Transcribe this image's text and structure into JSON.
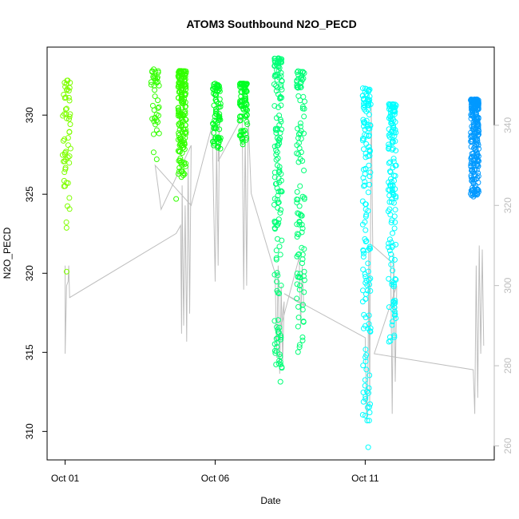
{
  "chart_data": {
    "type": "scatter",
    "title": "ATOM3 Southbound N2O_PECD",
    "xlabel": "Date",
    "ylabel": "N2O_PECD",
    "x_ticks": [
      "Oct 01",
      "Oct 06",
      "Oct 11"
    ],
    "y_ticks": [
      310,
      315,
      320,
      325,
      330
    ],
    "y_range": [
      308.2,
      334.3
    ],
    "y2_ticks": [
      260,
      280,
      300,
      320,
      340
    ],
    "y2_range": [
      256.5,
      359.5
    ],
    "x_range_days": [
      -0.6,
      14.3
    ],
    "colors": {
      "axis": "#000000",
      "altitude_line": "#bebebe",
      "y2_axis": "#bebebe"
    },
    "series": [
      {
        "color": "#7FFF00",
        "values": [
          {
            "x": 0.05,
            "y": 320.1
          },
          {
            "x": 0.05,
            "ymin": 322.8,
            "ymax": 332.2,
            "n": 55
          }
        ]
      },
      {
        "color": "#33FF00",
        "values": [
          {
            "x": 3.0,
            "ymin": 326.9,
            "ymax": 332.9,
            "n": 40
          },
          {
            "x": 3.7,
            "y": 324.7
          },
          {
            "x": 3.9,
            "ymin": 326.0,
            "ymax": 332.8,
            "n": 170
          }
        ]
      },
      {
        "color": "#00FF22",
        "values": [
          {
            "x": 5.05,
            "ymin": 327.8,
            "ymax": 332.0,
            "n": 80
          },
          {
            "x": 5.95,
            "ymin": 328.0,
            "ymax": 332.0,
            "n": 90
          }
        ]
      },
      {
        "color": "#00FF77",
        "values": [
          {
            "x": 7.1,
            "ymin": 313.0,
            "ymax": 333.6,
            "n": 160
          },
          {
            "x": 7.85,
            "ymin": 315.0,
            "ymax": 332.8,
            "n": 110
          }
        ]
      },
      {
        "color": "#00FFFF",
        "values": [
          {
            "x": 10.05,
            "ymin": 310.5,
            "ymax": 331.7,
            "n": 150
          },
          {
            "x": 10.1,
            "y": 309.0
          },
          {
            "x": 10.9,
            "ymin": 315.4,
            "ymax": 330.7,
            "n": 150
          }
        ]
      },
      {
        "color": "#0099FF",
        "values": [
          {
            "x": 13.65,
            "ymin": 324.8,
            "ymax": 331.0,
            "n": 220
          }
        ]
      }
    ],
    "altitude_profile": [
      [
        0.0,
        305
      ],
      [
        0.0,
        283
      ],
      [
        0.05,
        300
      ],
      [
        0.1,
        301
      ],
      [
        0.12,
        305
      ],
      [
        0.15,
        297
      ],
      [
        3.7,
        313
      ],
      [
        3.85,
        315
      ],
      [
        3.88,
        288
      ],
      [
        3.9,
        325
      ],
      [
        3.95,
        290
      ],
      [
        4.0,
        320
      ],
      [
        4.05,
        286
      ],
      [
        4.1,
        330
      ],
      [
        4.15,
        293
      ],
      [
        4.2,
        335
      ],
      [
        3.2,
        319
      ],
      [
        3.0,
        330
      ],
      [
        4.2,
        320
      ],
      [
        4.9,
        340
      ],
      [
        5.0,
        301
      ],
      [
        5.05,
        335
      ],
      [
        5.1,
        305
      ],
      [
        5.15,
        345
      ],
      [
        5.1,
        331
      ],
      [
        5.9,
        342
      ],
      [
        5.95,
        299
      ],
      [
        6.0,
        338
      ],
      [
        6.05,
        300
      ],
      [
        6.1,
        342
      ],
      [
        6.2,
        323
      ],
      [
        7.0,
        303
      ],
      [
        7.05,
        282
      ],
      [
        7.1,
        305
      ],
      [
        7.15,
        278
      ],
      [
        7.2,
        300
      ],
      [
        7.25,
        281
      ],
      [
        7.3,
        296
      ],
      [
        7.2,
        290
      ],
      [
        7.8,
        307
      ],
      [
        7.85,
        290
      ],
      [
        7.9,
        305
      ],
      [
        7.95,
        295
      ],
      [
        7.3,
        298
      ],
      [
        10.0,
        287
      ],
      [
        10.05,
        266
      ],
      [
        10.1,
        283
      ],
      [
        10.12,
        310
      ],
      [
        10.15,
        270
      ],
      [
        10.2,
        345
      ],
      [
        10.25,
        310
      ],
      [
        10.85,
        306
      ],
      [
        10.9,
        268
      ],
      [
        10.95,
        308
      ],
      [
        11.0,
        276
      ],
      [
        11.05,
        300
      ],
      [
        10.3,
        283
      ],
      [
        13.6,
        279
      ],
      [
        13.65,
        268
      ],
      [
        13.7,
        305
      ],
      [
        13.75,
        272
      ],
      [
        13.8,
        310
      ],
      [
        13.85,
        283
      ],
      [
        13.9,
        309
      ],
      [
        13.95,
        285
      ]
    ]
  }
}
